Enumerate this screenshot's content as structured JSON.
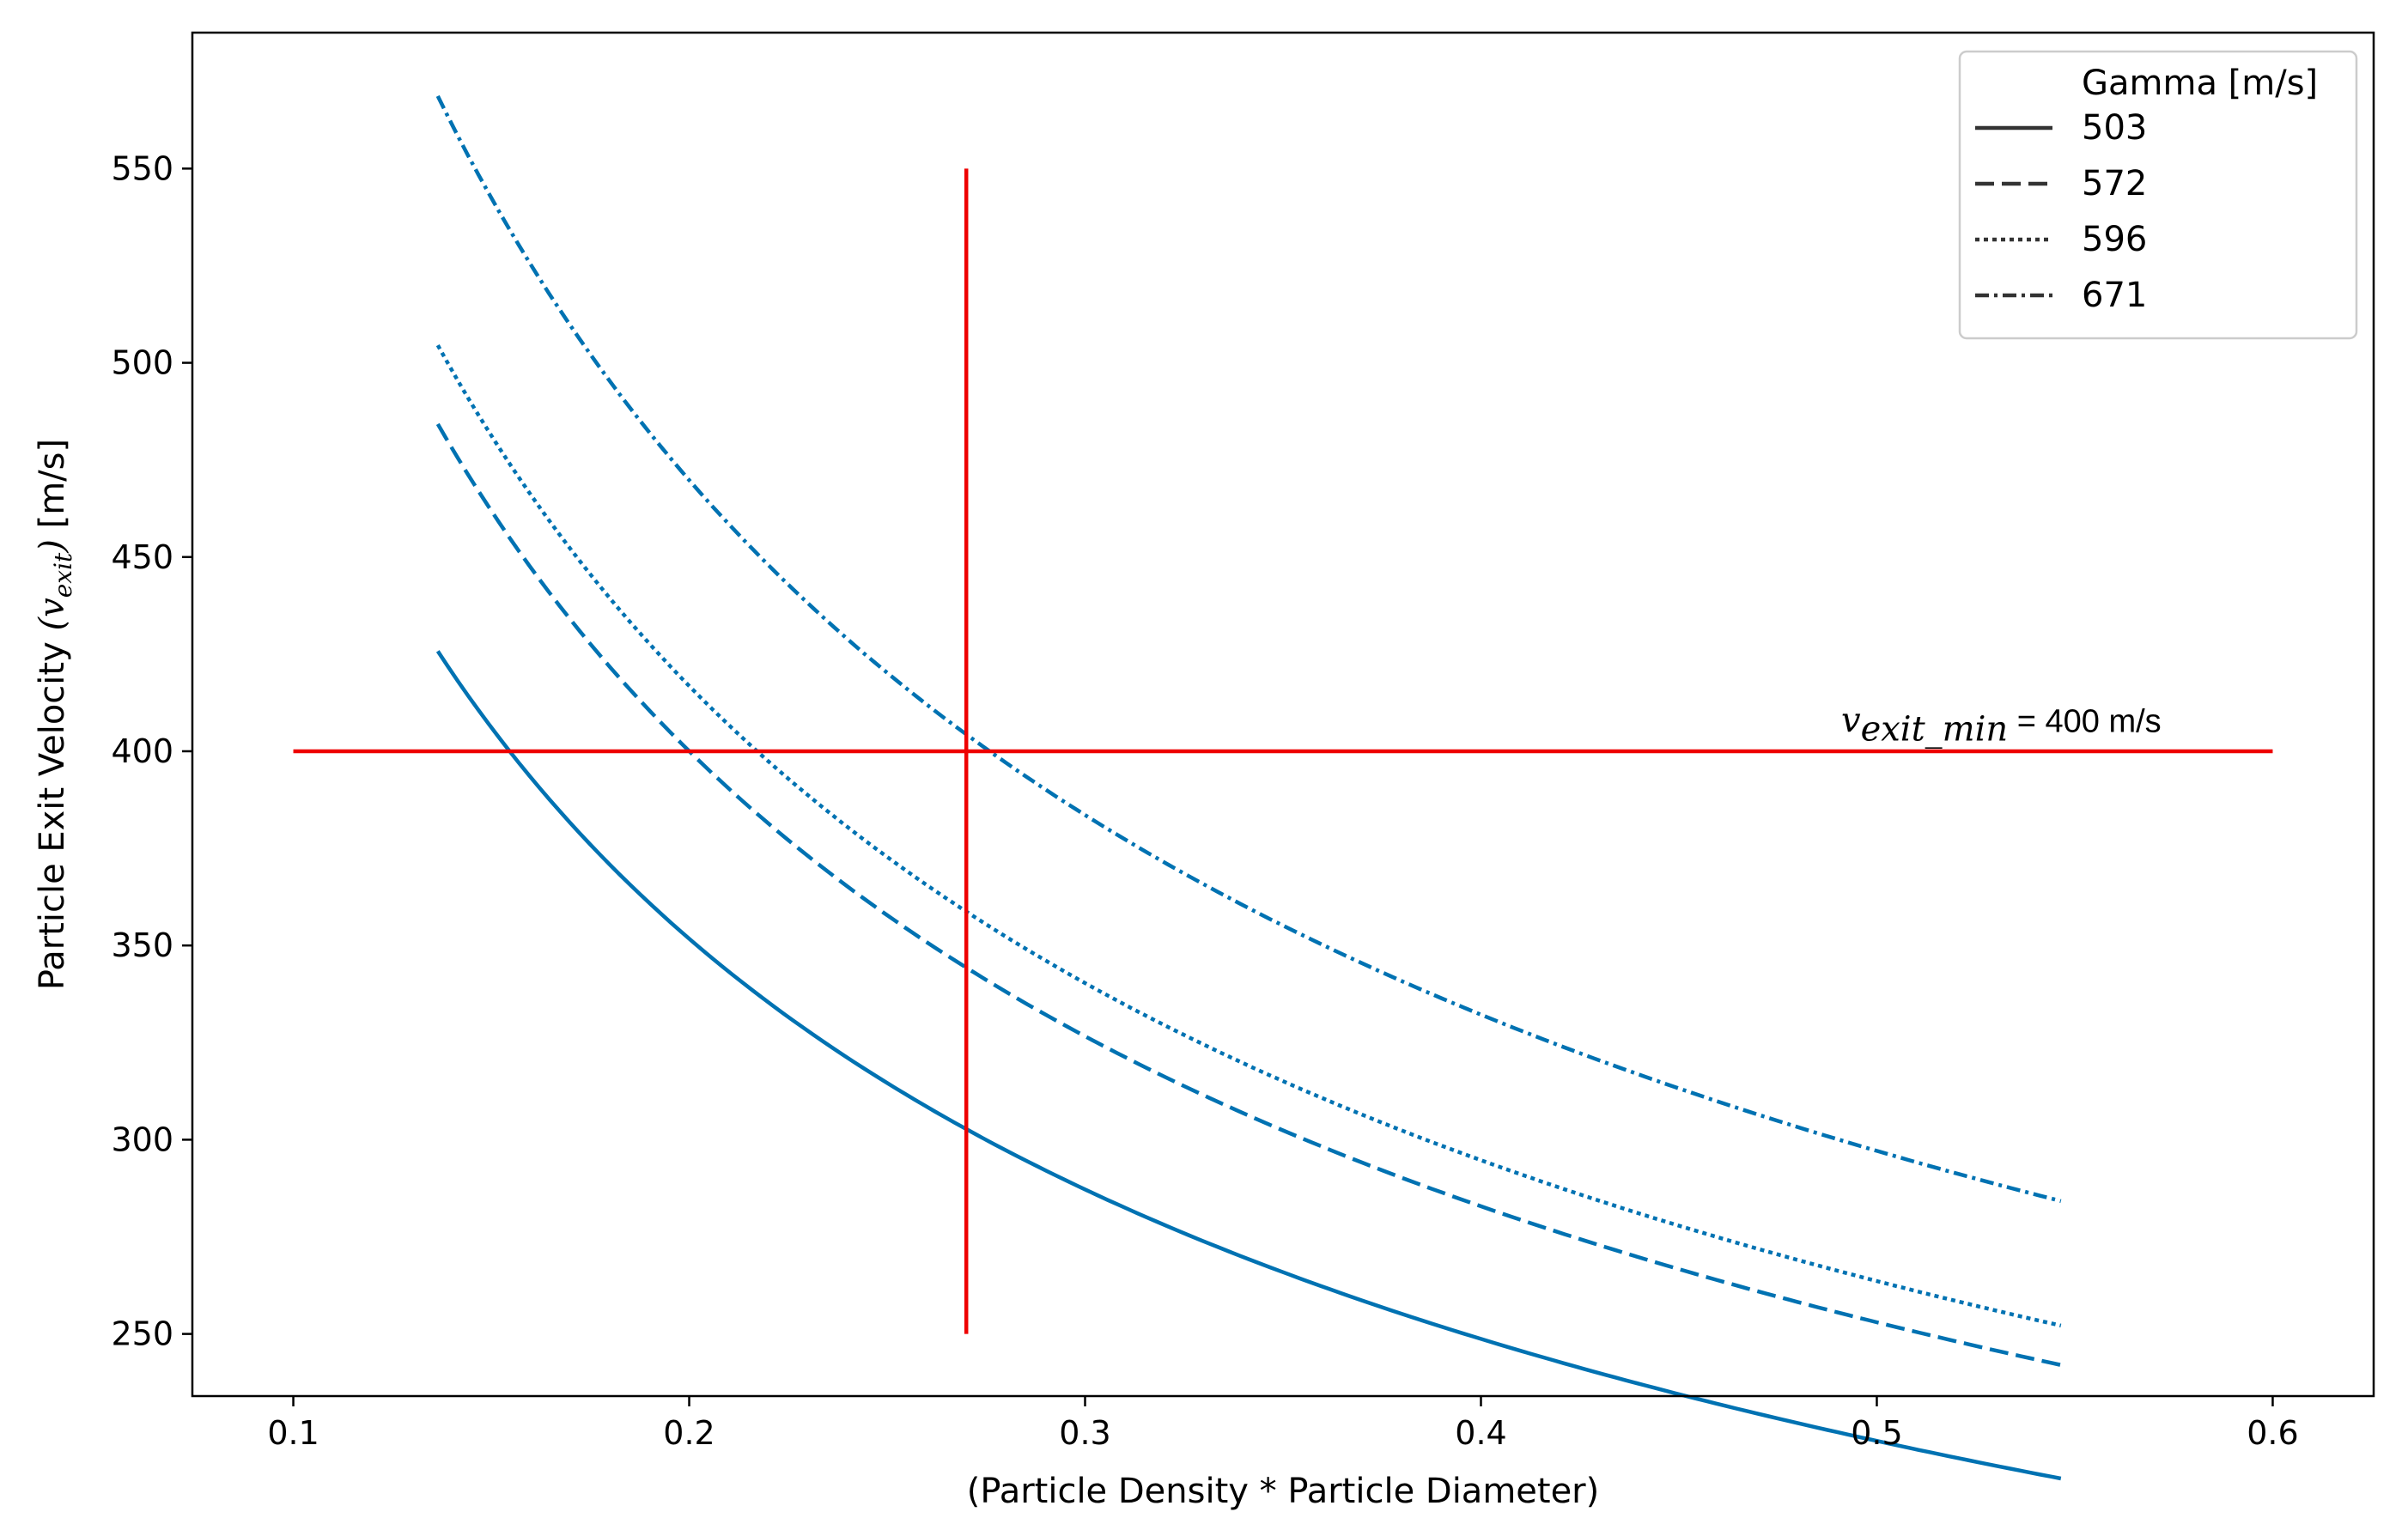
{
  "chart_data": {
    "type": "line",
    "title": "",
    "xlabel": "(Particle Density * Particle Diameter)",
    "ylabel": {
      "prefix": "Particle Exit Velocity ",
      "open_paren": "(",
      "v": "v",
      "sub": "exit",
      "close_paren": ")",
      "suffix": " [m/s]"
    },
    "xlim": [
      0.0745,
      0.6255
    ],
    "ylim": [
      234,
      585
    ],
    "xticks": [
      0.1,
      0.2,
      0.3,
      0.4,
      0.5,
      0.6
    ],
    "xtick_labels": [
      "0.1",
      "0.2",
      "0.3",
      "0.4",
      "0.5",
      "0.6"
    ],
    "yticks": [
      250,
      300,
      350,
      400,
      450,
      500,
      550
    ],
    "ytick_labels": [
      "250",
      "300",
      "350",
      "400",
      "450",
      "500",
      "550"
    ],
    "grid": false,
    "legend": {
      "title": "Gamma [m/s]",
      "location": "top-right"
    },
    "series_color": "#0072b2",
    "x_start": 0.1365,
    "x_end": 0.5465,
    "series": [
      {
        "name": "503",
        "style": "solid",
        "coefficient": 157.3
      },
      {
        "name": "572",
        "style": "dashed",
        "coefficient": 178.9
      },
      {
        "name": "596",
        "style": "dotted",
        "coefficient": 186.4
      },
      {
        "name": "671",
        "style": "dashdot",
        "coefficient": 210.1
      }
    ],
    "curve_formula": "y = coefficient / sqrt(x)",
    "reference_lines": [
      {
        "orientation": "horizontal",
        "value": 400,
        "from": 0.1,
        "to": 0.6,
        "color": "#ee0000"
      },
      {
        "orientation": "vertical",
        "value": 0.27,
        "from": 250,
        "to": 550,
        "color": "#ee0000"
      }
    ],
    "annotation": {
      "v": "v",
      "sub": "exit_min",
      "text": " = 400 m/s",
      "x": 0.491,
      "y": 405
    }
  }
}
